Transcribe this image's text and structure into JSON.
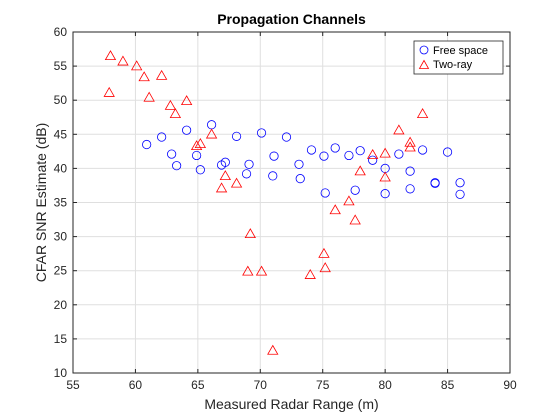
{
  "chart_data": {
    "type": "scatter",
    "title": "Propagation Channels",
    "xlabel": "Measured Radar Range (m)",
    "ylabel": "CFAR SNR Estimate (dB)",
    "xlim": [
      55,
      90
    ],
    "ylim": [
      10,
      60
    ],
    "xticks": [
      55,
      60,
      65,
      70,
      75,
      80,
      85,
      90
    ],
    "yticks": [
      10,
      15,
      20,
      25,
      30,
      35,
      40,
      45,
      50,
      55,
      60
    ],
    "grid": true,
    "legend_position": "top-right",
    "series": [
      {
        "name": "Free space",
        "marker": "circle",
        "color": "#0000ff",
        "points": [
          [
            60.9,
            43.5
          ],
          [
            62.1,
            44.6
          ],
          [
            62.9,
            42.1
          ],
          [
            63.3,
            40.4
          ],
          [
            64.1,
            45.6
          ],
          [
            64.9,
            41.9
          ],
          [
            65.2,
            39.8
          ],
          [
            66.1,
            46.4
          ],
          [
            66.9,
            40.5
          ],
          [
            67.2,
            40.9
          ],
          [
            68.1,
            44.7
          ],
          [
            68.9,
            39.2
          ],
          [
            69.1,
            40.6
          ],
          [
            70.1,
            45.2
          ],
          [
            71.0,
            38.9
          ],
          [
            71.1,
            41.8
          ],
          [
            72.1,
            44.6
          ],
          [
            73.1,
            40.6
          ],
          [
            73.2,
            38.5
          ],
          [
            74.1,
            42.7
          ],
          [
            75.1,
            41.8
          ],
          [
            75.2,
            36.4
          ],
          [
            76.0,
            43.0
          ],
          [
            77.1,
            41.9
          ],
          [
            77.6,
            36.8
          ],
          [
            78.0,
            42.6
          ],
          [
            79.0,
            41.2
          ],
          [
            80.0,
            40.0
          ],
          [
            80.0,
            36.3
          ],
          [
            81.1,
            42.1
          ],
          [
            82.0,
            39.6
          ],
          [
            82.0,
            37.0
          ],
          [
            83.0,
            42.7
          ],
          [
            84.0,
            37.9
          ],
          [
            84.0,
            37.8
          ],
          [
            85.0,
            42.4
          ],
          [
            86.0,
            37.9
          ],
          [
            86.0,
            36.2
          ]
        ]
      },
      {
        "name": "Two-ray",
        "marker": "triangle",
        "color": "#ff0000",
        "points": [
          [
            58.0,
            56.5
          ],
          [
            57.9,
            51.1
          ],
          [
            59.0,
            55.7
          ],
          [
            60.1,
            55.0
          ],
          [
            60.7,
            53.4
          ],
          [
            61.1,
            50.4
          ],
          [
            62.1,
            53.6
          ],
          [
            62.8,
            49.2
          ],
          [
            63.2,
            48.0
          ],
          [
            64.1,
            49.9
          ],
          [
            64.9,
            43.3
          ],
          [
            65.2,
            43.6
          ],
          [
            66.1,
            45.0
          ],
          [
            66.9,
            37.1
          ],
          [
            67.2,
            38.9
          ],
          [
            68.1,
            37.8
          ],
          [
            69.0,
            24.9
          ],
          [
            69.2,
            30.4
          ],
          [
            70.1,
            24.9
          ],
          [
            71.0,
            13.3
          ],
          [
            74.0,
            24.4
          ],
          [
            75.1,
            27.5
          ],
          [
            75.2,
            25.4
          ],
          [
            76.0,
            33.9
          ],
          [
            77.1,
            35.2
          ],
          [
            77.6,
            32.4
          ],
          [
            78.0,
            39.6
          ],
          [
            79.0,
            42.0
          ],
          [
            80.0,
            42.2
          ],
          [
            80.0,
            38.7
          ],
          [
            81.1,
            45.6
          ],
          [
            82.0,
            43.8
          ],
          [
            82.0,
            43.1
          ],
          [
            83.0,
            48.0
          ]
        ]
      }
    ]
  }
}
